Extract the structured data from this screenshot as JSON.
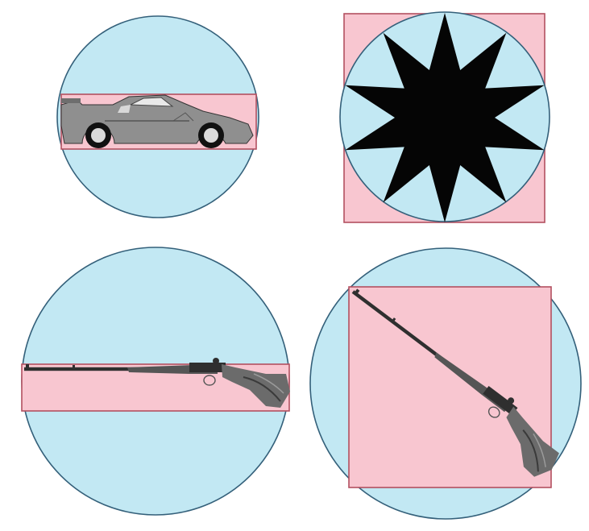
{
  "colors": {
    "circle_fill": "#c2e8f3",
    "circle_stroke": "#34607a",
    "box_fill": "#f8c6d0",
    "box_stroke": "#b35060",
    "star_fill": "#050505",
    "car_body": "#8f8f8f",
    "rifle_metal": "#2f2f2f",
    "rifle_stock": "#6b6b6b"
  },
  "panels": [
    {
      "id": "car",
      "object": "sports-car",
      "shape": "circle-with-bounding-box"
    },
    {
      "id": "star",
      "object": "ten-point-star",
      "shape": "circle-with-bounding-box"
    },
    {
      "id": "rifle-horizontal",
      "object": "rifle",
      "orientation": "horizontal"
    },
    {
      "id": "rifle-diagonal",
      "object": "rifle",
      "orientation": "diagonal"
    }
  ]
}
